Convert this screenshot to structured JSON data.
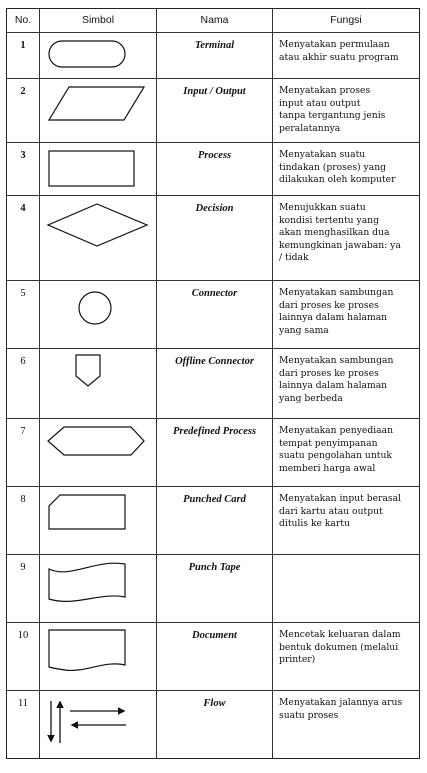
{
  "table": {
    "headers": {
      "no": "No.",
      "symbol": "Simbol",
      "name": "Nama",
      "function": "Fungsi"
    },
    "rows": [
      {
        "no": "1",
        "symbol_icon": "terminal-icon",
        "name": "Terminal",
        "function": "Menyatakan permulaan\natau akhir suatu program"
      },
      {
        "no": "2",
        "symbol_icon": "input-output-icon",
        "name": "Input / Output",
        "function": "Menyatakan proses\ninput atau output\ntanpa tergantung jenis\nperalatannya"
      },
      {
        "no": "3",
        "symbol_icon": "process-icon",
        "name": "Process",
        "function": "Menyatakan suatu\ntindakan (proses) yang\ndilakukan oleh komputer"
      },
      {
        "no": "4",
        "symbol_icon": "decision-icon",
        "name": "Decision",
        "function": "Menujukkan suatu\nkondisi tertentu yang\nakan menghasilkan dua\nkemungkinan jawaban: ya\n/ tidak"
      },
      {
        "no": "5",
        "symbol_icon": "connector-icon",
        "name": "Connector",
        "function": "Menyatakan sambungan\ndari proses ke proses\nlainnya dalam halaman\nyang sama"
      },
      {
        "no": "6",
        "symbol_icon": "offline-connector-icon",
        "name": "Offline Connector",
        "function": "Menyatakan sambungan\ndari proses ke proses\nlainnya dalam halaman\nyang berbeda"
      },
      {
        "no": "7",
        "symbol_icon": "predefined-process-icon",
        "name": "Predefined Process",
        "function": "Menyatakan penyediaan\ntempat penyimpanan\nsuatu pengolahan untuk\nmemberi harga awal"
      },
      {
        "no": "8",
        "symbol_icon": "punched-card-icon",
        "name": "Punched Card",
        "function": "Menyatakan input berasal\ndari kartu atau output\nditulis ke kartu"
      },
      {
        "no": "9",
        "symbol_icon": "punch-tape-icon",
        "name": "Punch Tape",
        "function": ""
      },
      {
        "no": "10",
        "symbol_icon": "document-icon",
        "name": "Document",
        "function": "Mencetak keluaran dalam\nbentuk dokumen (melalui\nprinter)"
      },
      {
        "no": "11",
        "symbol_icon": "flow-icon",
        "name": "Flow",
        "function": "Menyatakan jalannya arus\nsuatu proses"
      }
    ]
  }
}
